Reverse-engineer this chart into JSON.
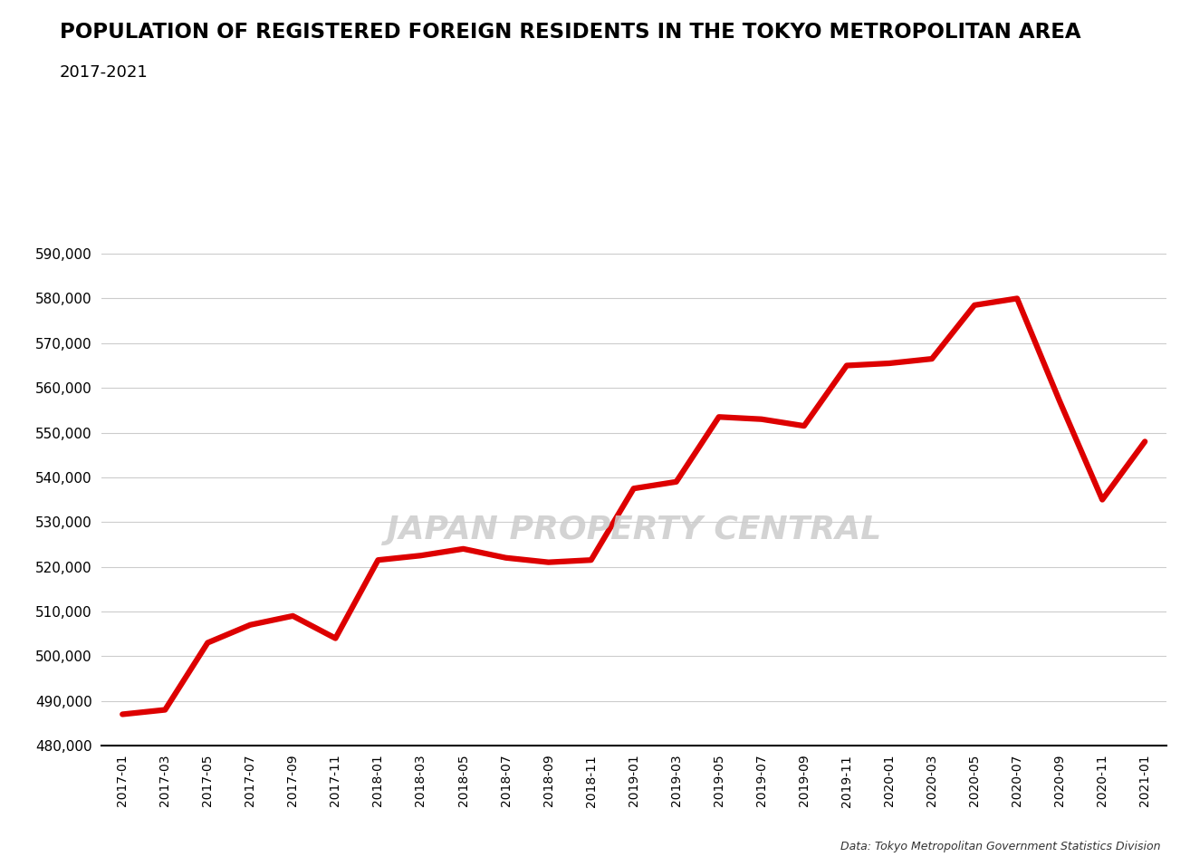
{
  "title": "POPULATION OF REGISTERED FOREIGN RESIDENTS IN THE TOKYO METROPOLITAN AREA",
  "subtitle": "2017-2021",
  "watermark": "JAPAN PROPERTY CENTRAL",
  "source": "Data: Tokyo Metropolitan Government Statistics Division",
  "line_color": "#dd0000",
  "line_width": 4.5,
  "background_color": "#ffffff",
  "grid_color": "#cccccc",
  "ylim": [
    480000,
    595000
  ],
  "yticks": [
    480000,
    490000,
    500000,
    510000,
    520000,
    530000,
    540000,
    550000,
    560000,
    570000,
    580000,
    590000
  ],
  "labels": [
    "2017-01",
    "2017-03",
    "2017-05",
    "2017-07",
    "2017-09",
    "2017-11",
    "2018-01",
    "2018-03",
    "2018-05",
    "2018-07",
    "2018-09",
    "2018-11",
    "2019-01",
    "2019-03",
    "2019-05",
    "2019-07",
    "2019-09",
    "2019-11",
    "2020-01",
    "2020-03",
    "2020-05",
    "2020-07",
    "2020-09",
    "2020-11",
    "2021-01"
  ],
  "values": [
    487000,
    488000,
    503000,
    507000,
    509000,
    504000,
    521500,
    522500,
    524000,
    522000,
    521000,
    521500,
    537500,
    539000,
    553500,
    553000,
    551500,
    565000,
    565500,
    566500,
    578500,
    580000,
    557000,
    535000,
    548000
  ]
}
